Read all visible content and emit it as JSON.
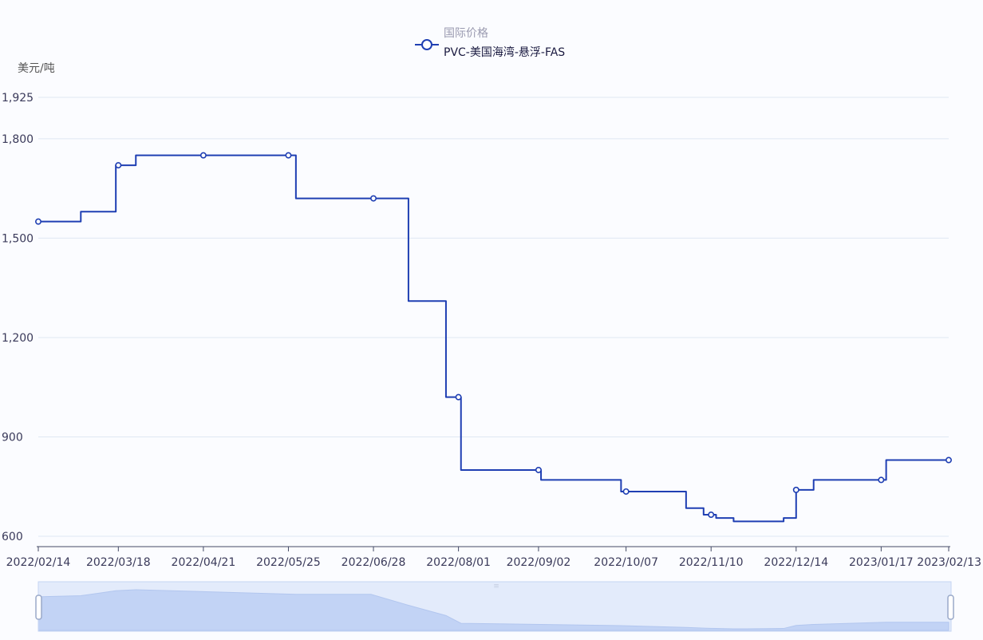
{
  "chart_data": {
    "type": "line",
    "step": true,
    "legend": {
      "group_label": "国际价格",
      "series_label": "PVC-美国海湾-悬浮-FAS",
      "placement": "top-center"
    },
    "ylabel": "美元/吨",
    "ylim": [
      600,
      1925
    ],
    "y_ticks": [
      600,
      900,
      1200,
      1500,
      1800,
      1925
    ],
    "y_tick_labels": [
      "600",
      "900",
      "1,200",
      "1,500",
      "1,800",
      "1,925"
    ],
    "x_tick_labels": [
      "2022/02/14",
      "2022/03/18",
      "2022/04/21",
      "2022/05/25",
      "2022/06/28",
      "2022/08/01",
      "2022/09/02",
      "2022/10/07",
      "2022/11/10",
      "2022/12/14",
      "2023/01/17",
      "2023/02/13"
    ],
    "grid": true,
    "colors": {
      "line": "#1f3fb3",
      "grid": "#dfe7f3",
      "axis_text": "#3a3a5a",
      "zoom_fill": "#c9d8f6",
      "zoom_frame": "#dde6f8"
    },
    "series": [
      {
        "name": "PVC-美国海湾-悬浮-FAS",
        "x": [
          "2022-02-14",
          "2022-03-03",
          "2022-03-17",
          "2022-03-25",
          "2022-05-28",
          "2022-06-27",
          "2022-07-12",
          "2022-07-27",
          "2022-08-02",
          "2022-09-03",
          "2022-10-05",
          "2022-10-31",
          "2022-11-07",
          "2022-11-12",
          "2022-11-19",
          "2022-11-24",
          "2022-12-09",
          "2022-12-14",
          "2022-12-21",
          "2023-01-19",
          "2023-02-13"
        ],
        "values": [
          1550,
          1580,
          1720,
          1750,
          1620,
          1620,
          1310,
          1020,
          800,
          770,
          735,
          685,
          665,
          655,
          645,
          645,
          655,
          740,
          770,
          830,
          830
        ]
      }
    ],
    "markers": [
      {
        "x": "2022-02-14",
        "y": 1550
      },
      {
        "x": "2022-03-18",
        "y": 1720
      },
      {
        "x": "2022-04-21",
        "y": 1750
      },
      {
        "x": "2022-05-25",
        "y": 1750
      },
      {
        "x": "2022-06-28",
        "y": 1620
      },
      {
        "x": "2022-08-01",
        "y": 1020
      },
      {
        "x": "2022-09-02",
        "y": 800
      },
      {
        "x": "2022-10-07",
        "y": 735
      },
      {
        "x": "2022-11-10",
        "y": 665
      },
      {
        "x": "2022-12-14",
        "y": 740
      },
      {
        "x": "2023-01-17",
        "y": 770
      },
      {
        "x": "2023-02-13",
        "y": 830
      }
    ]
  }
}
